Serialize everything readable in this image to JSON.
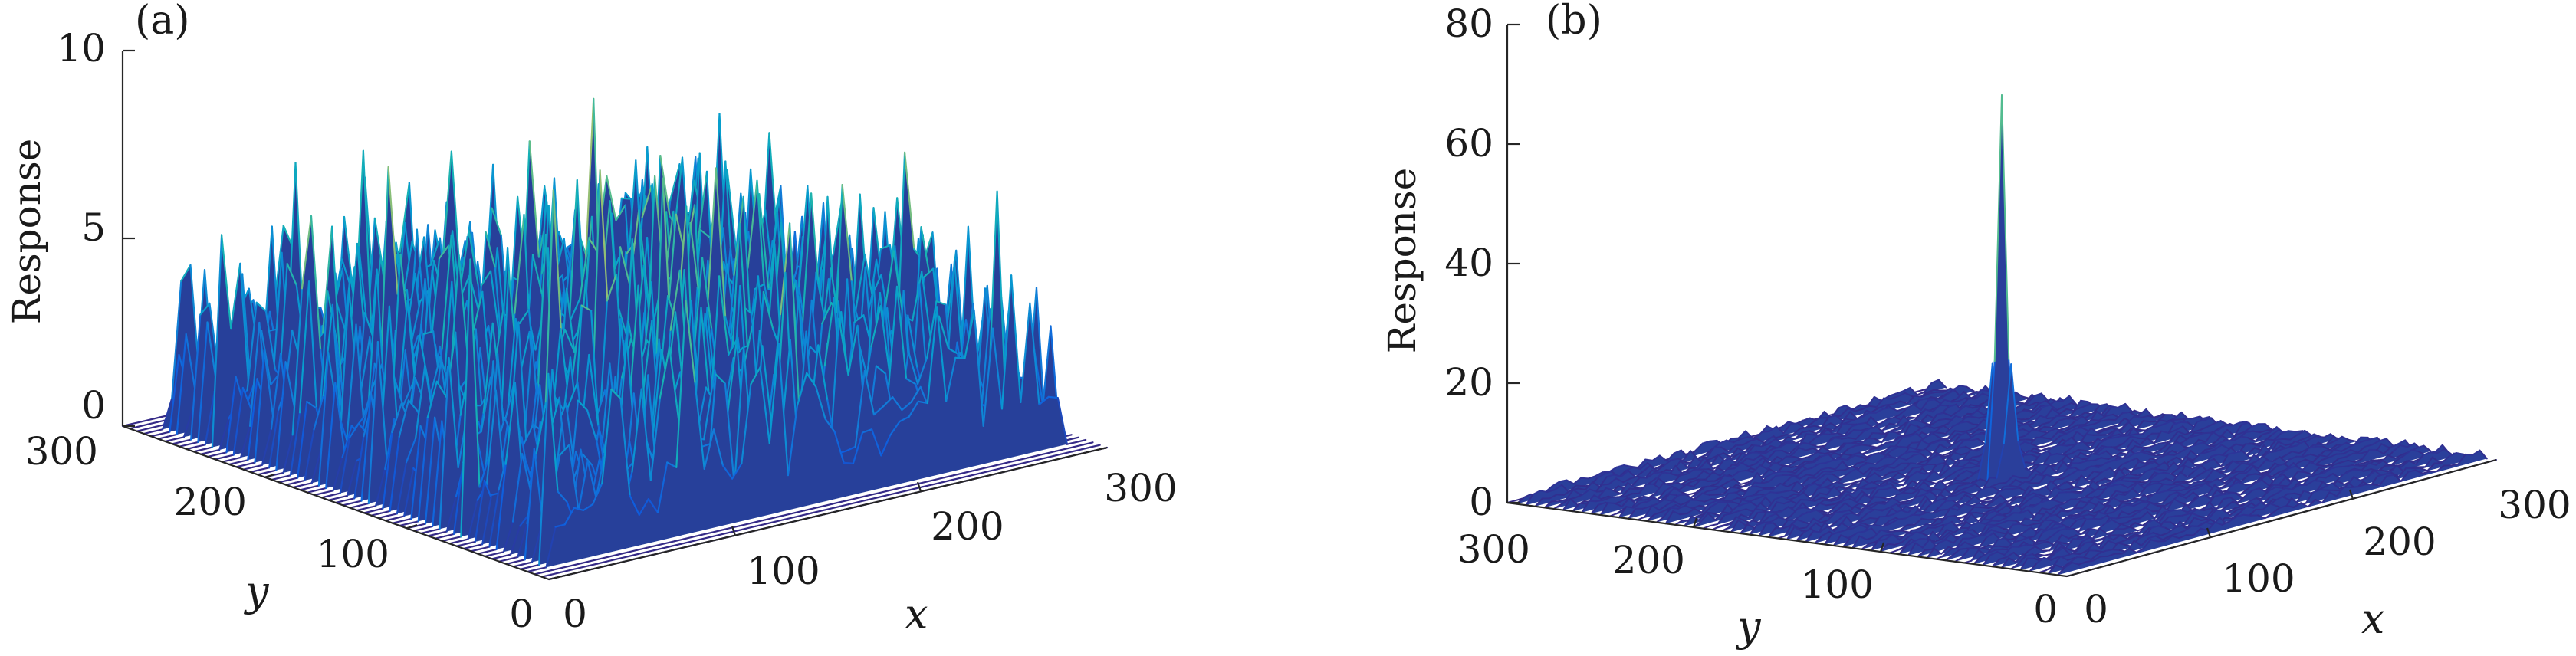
{
  "chart_data": [
    {
      "type": "surface",
      "panel_label": "(a)",
      "zlabel": "Response",
      "xlabel": "x",
      "ylabel": "y",
      "xlim": [
        0,
        300
      ],
      "ylim": [
        0,
        300
      ],
      "zlim": [
        0,
        10
      ],
      "x_ticks": [
        "0",
        "100",
        "200",
        "300"
      ],
      "y_ticks": [
        "0",
        "100",
        "200",
        "300"
      ],
      "z_ticks": [
        "0",
        "5",
        "10"
      ],
      "peak": {
        "x": 150,
        "y": 150,
        "response": 8.8
      },
      "noise_level": 3.5,
      "colormap": "parula",
      "grid": false
    },
    {
      "type": "surface",
      "panel_label": "(b)",
      "zlabel": "Response",
      "xlabel": "x",
      "ylabel": "y",
      "xlim": [
        0,
        300
      ],
      "ylim": [
        0,
        300
      ],
      "zlim": [
        0,
        80
      ],
      "x_ticks": [
        "0",
        "100",
        "200",
        "300"
      ],
      "y_ticks": [
        "0",
        "100",
        "200",
        "300"
      ],
      "z_ticks": [
        "0",
        "20",
        "40",
        "60",
        "80"
      ],
      "peak": {
        "x": 150,
        "y": 150,
        "response": 64
      },
      "noise_level": 4,
      "colormap": "parula",
      "grid": false
    }
  ]
}
